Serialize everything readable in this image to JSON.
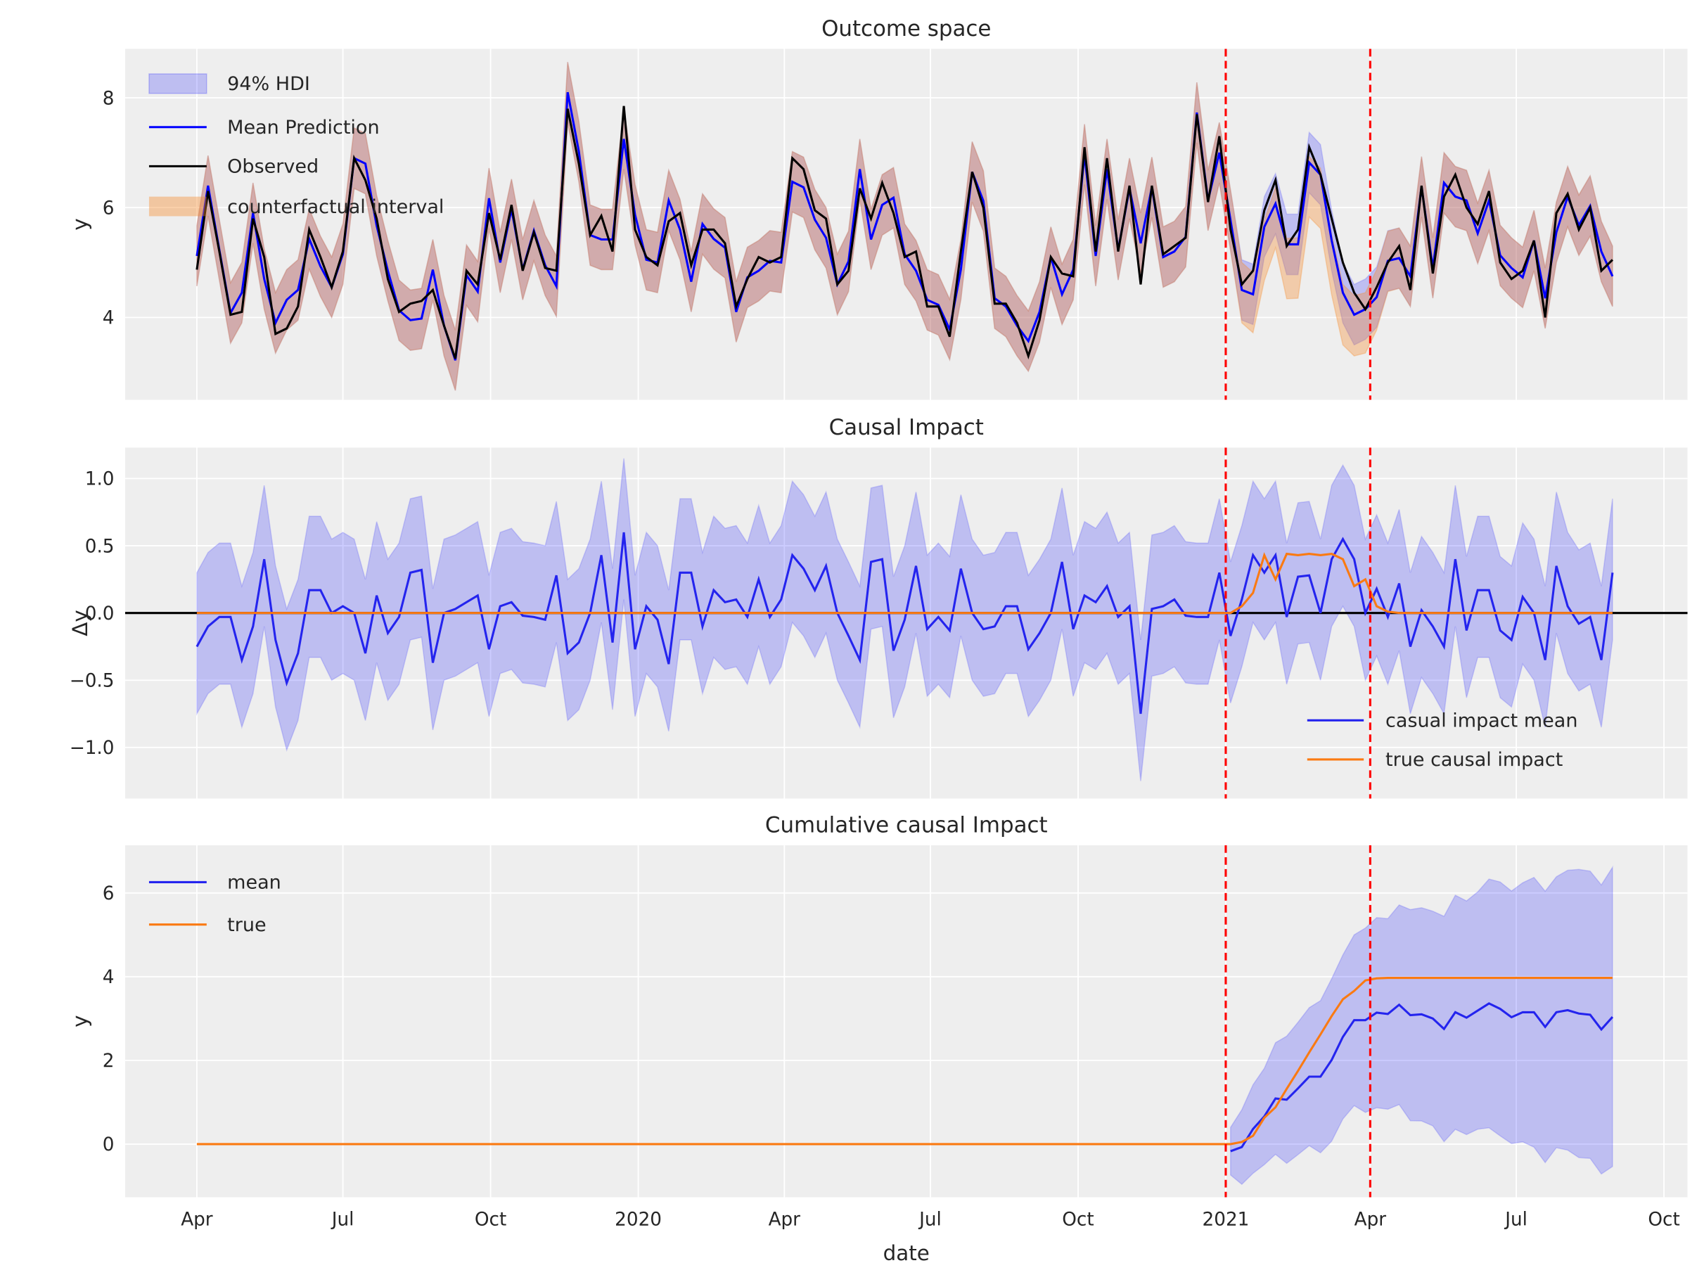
{
  "chart_data": {
    "type": "line",
    "x_axis": {
      "label": "date",
      "start": "2019-04-01",
      "step_days": 7,
      "tick_dates": [
        "2019-04-01",
        "2019-07-01",
        "2019-10-01",
        "2020-01-01",
        "2020-04-01",
        "2020-07-01",
        "2020-10-01",
        "2021-01-01",
        "2021-04-01",
        "2021-07-01",
        "2021-10-01"
      ],
      "tick_labels": [
        "Apr",
        "Jul",
        "Oct",
        "2020",
        "Apr",
        "Jul",
        "Oct",
        "2021",
        "Apr",
        "Jul",
        "Oct"
      ]
    },
    "intervention_lines": [
      "2021-01-01",
      "2021-04-01"
    ],
    "colors": {
      "hdi": "#0000ff",
      "mean": "#0000ff",
      "observed": "#000000",
      "counterfactual": "#f58a2a",
      "impact_mean": "#2424ee",
      "true": "#fa7a12",
      "vline": "#ff0000"
    },
    "series": {
      "observed": [
        4.87,
        6.3,
        5.2,
        4.05,
        4.1,
        5.8,
        5.1,
        3.7,
        3.8,
        4.2,
        5.6,
        5.1,
        4.55,
        5.2,
        6.9,
        6.5,
        5.8,
        4.7,
        4.1,
        4.25,
        4.3,
        4.5,
        3.85,
        3.25,
        4.85,
        4.6,
        5.9,
        5.05,
        6.05,
        4.85,
        5.55,
        4.9,
        4.85,
        7.8,
        6.8,
        5.5,
        5.85,
        5.2,
        7.85,
        5.6,
        5.1,
        4.95,
        5.75,
        5.9,
        4.95,
        5.6,
        5.6,
        5.35,
        4.2,
        4.7,
        5.1,
        5.0,
        5.1,
        6.9,
        6.7,
        5.95,
        5.8,
        4.6,
        4.85,
        6.35,
        5.8,
        6.45,
        5.9,
        5.1,
        5.2,
        4.2,
        4.2,
        3.65,
        5.2,
        6.65,
        6.0,
        4.25,
        4.25,
        3.9,
        3.3,
        3.95,
        5.1,
        4.8,
        4.75,
        7.1,
        5.2,
        6.9,
        5.2,
        6.4,
        4.6,
        6.4,
        5.15,
        5.3,
        5.45,
        7.7,
        6.1,
        7.3,
        5.6,
        4.6,
        4.85,
        5.95,
        6.5,
        5.3,
        5.6,
        7.1,
        6.6,
        5.8,
        5.0,
        4.45,
        4.15,
        4.55,
        5.0,
        5.3,
        4.5,
        6.4,
        4.8,
        6.2,
        6.6,
        6.0,
        5.7,
        6.3,
        5.0,
        4.7,
        4.85,
        5.4,
        4.0,
        5.9,
        6.25,
        5.6,
        6.0,
        4.85,
        5.05
      ],
      "causal_impact_mean": [
        -0.25,
        -0.1,
        -0.03,
        -0.03,
        -0.35,
        -0.1,
        0.4,
        -0.2,
        -0.52,
        -0.3,
        0.17,
        0.17,
        0.0,
        0.05,
        0.0,
        -0.3,
        0.13,
        -0.15,
        -0.03,
        0.3,
        0.32,
        -0.37,
        0.0,
        0.03,
        0.08,
        0.13,
        -0.27,
        0.05,
        0.08,
        -0.02,
        -0.03,
        -0.05,
        0.28,
        -0.3,
        -0.22,
        0.0,
        0.43,
        -0.22,
        0.6,
        -0.27,
        0.05,
        -0.05,
        -0.38,
        0.3,
        0.3,
        -0.1,
        0.17,
        0.08,
        0.1,
        -0.03,
        0.25,
        -0.03,
        0.1,
        0.43,
        0.33,
        0.17,
        0.35,
        0.0,
        -0.17,
        -0.35,
        0.38,
        0.4,
        -0.28,
        -0.05,
        0.35,
        -0.12,
        -0.03,
        -0.13,
        0.33,
        0.0,
        -0.12,
        -0.1,
        0.05,
        0.05,
        -0.27,
        -0.15,
        0.0,
        0.38,
        -0.12,
        0.13,
        0.08,
        0.2,
        -0.03,
        0.05,
        -0.75,
        0.03,
        0.05,
        0.1,
        -0.02,
        -0.03,
        -0.03,
        0.3,
        -0.17,
        0.1,
        0.43,
        0.3,
        0.43,
        -0.03,
        0.27,
        0.28,
        0.0,
        0.4,
        0.55,
        0.4,
        0.0,
        0.18,
        -0.03,
        0.22,
        -0.25,
        0.02,
        -0.1,
        -0.25,
        0.4,
        -0.13,
        0.17,
        0.17,
        -0.13,
        -0.2,
        0.12,
        0.0,
        -0.35,
        0.35,
        0.05,
        -0.08,
        -0.03,
        -0.35,
        0.3
      ],
      "true_causal_impact": [
        0,
        0,
        0,
        0,
        0,
        0,
        0,
        0,
        0,
        0,
        0,
        0,
        0,
        0,
        0,
        0,
        0,
        0,
        0,
        0,
        0,
        0,
        0,
        0,
        0,
        0,
        0,
        0,
        0,
        0,
        0,
        0,
        0,
        0,
        0,
        0,
        0,
        0,
        0,
        0,
        0,
        0,
        0,
        0,
        0,
        0,
        0,
        0,
        0,
        0,
        0,
        0,
        0,
        0,
        0,
        0,
        0,
        0,
        0,
        0,
        0,
        0,
        0,
        0,
        0,
        0,
        0,
        0,
        0,
        0,
        0,
        0,
        0,
        0,
        0,
        0,
        0,
        0,
        0,
        0,
        0,
        0,
        0,
        0,
        0,
        0,
        0,
        0,
        0,
        0,
        0,
        0,
        0.0,
        0.05,
        0.15,
        0.43,
        0.25,
        0.44,
        0.43,
        0.44,
        0.43,
        0.44,
        0.4,
        0.2,
        0.25,
        0.05,
        0.01,
        0,
        0,
        0,
        0,
        0,
        0,
        0,
        0,
        0,
        0,
        0,
        0,
        0,
        0,
        0,
        0,
        0,
        0,
        0,
        0
      ],
      "interval_halfwidth": 0.55
    },
    "panels": [
      {
        "title": "Outcome space",
        "ylabel": "y",
        "ylim": [
          2.5,
          8.89
        ],
        "yticks": [
          4,
          6,
          8
        ],
        "ytick_labels": [
          "4",
          "6",
          "8"
        ],
        "legend": {
          "position": "upper left",
          "entries": [
            "94% HDI",
            "Mean Prediction",
            "Observed",
            "counterfactual interval"
          ]
        }
      },
      {
        "title": "Causal Impact",
        "ylabel": "Δy",
        "ylim": [
          -1.38,
          1.23
        ],
        "yticks": [
          -1,
          -0.5,
          0,
          0.5,
          1
        ],
        "ytick_labels": [
          "−1.0",
          "−0.5",
          "0.0",
          "0.5",
          "1.0"
        ],
        "legend": {
          "position": "lower right",
          "entries": [
            "casual impact mean",
            "true causal impact"
          ]
        }
      },
      {
        "title": "Cumulative causal Impact",
        "ylabel": "y",
        "ylim": [
          -1.27,
          7.14
        ],
        "yticks": [
          0,
          2,
          4,
          6
        ],
        "ytick_labels": [
          "0",
          "2",
          "4",
          "6"
        ],
        "legend": {
          "position": "upper left",
          "entries": [
            "mean",
            "true"
          ]
        }
      }
    ]
  }
}
